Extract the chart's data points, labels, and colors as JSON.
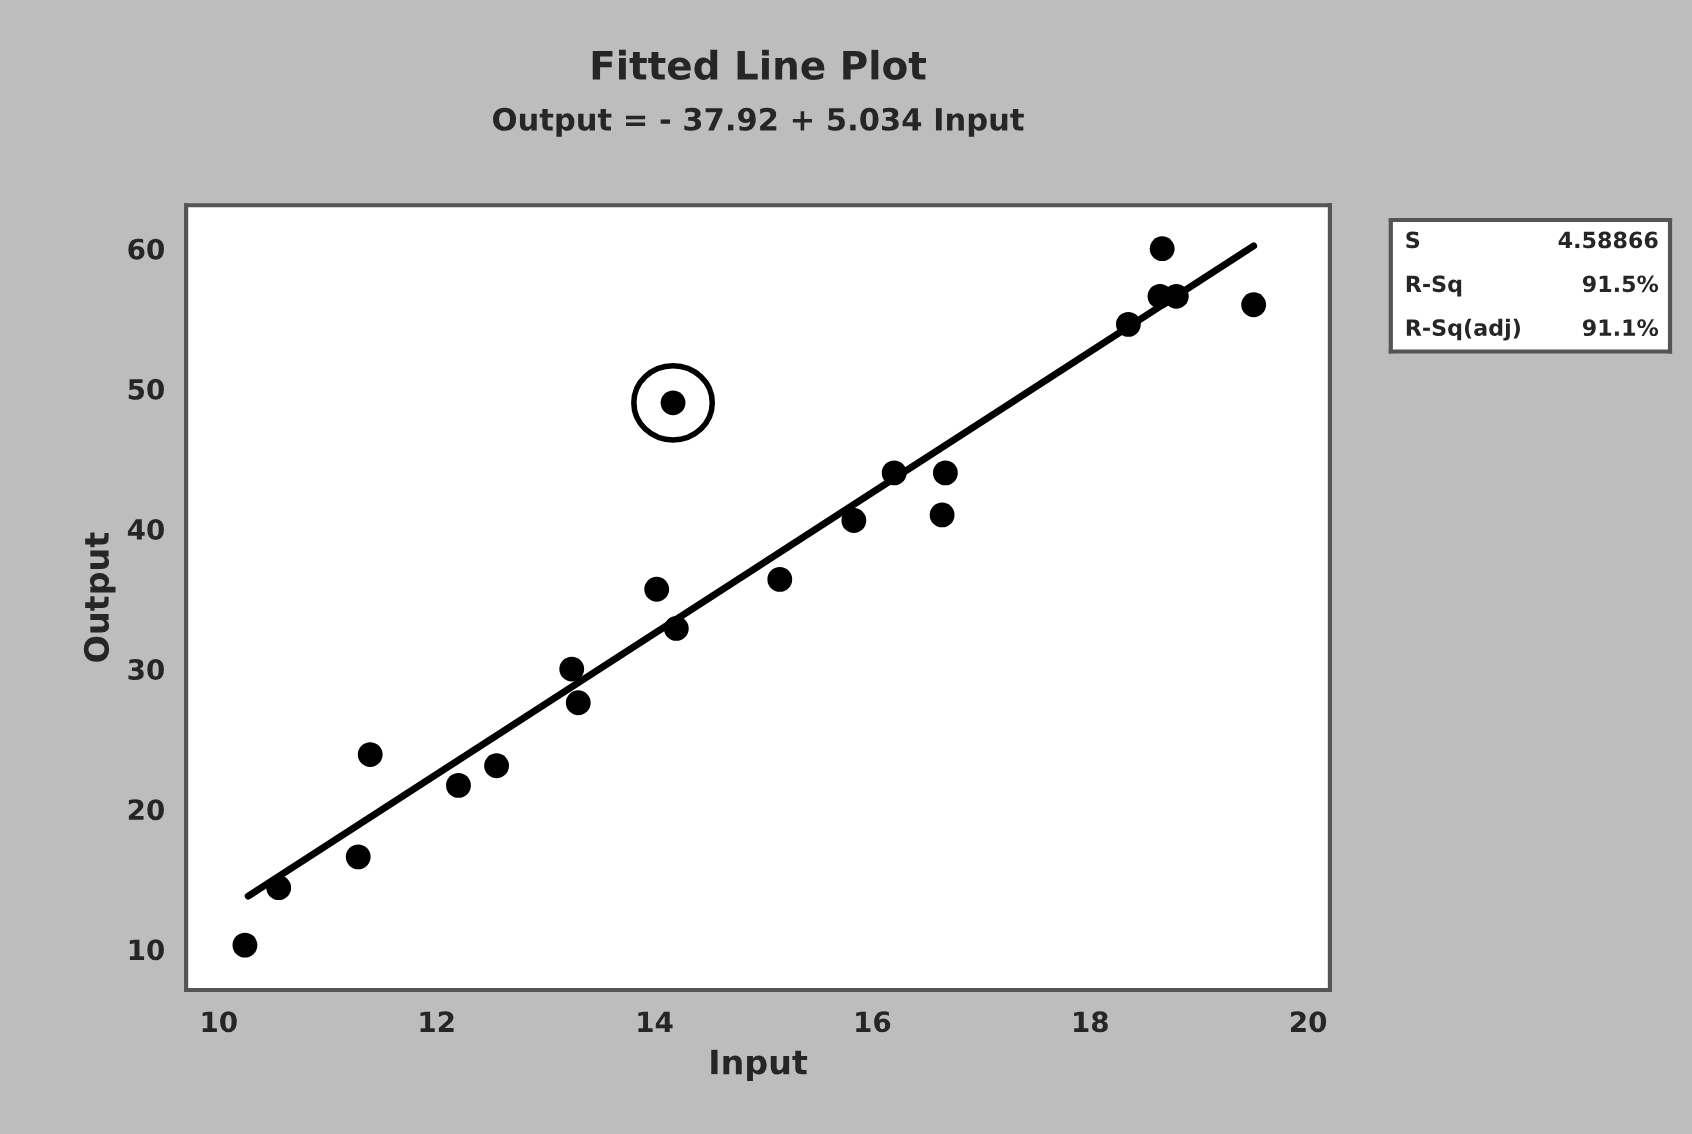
{
  "chart_data": {
    "type": "scatter",
    "title": "Fitted Line Plot",
    "subtitle": "Output = - 37.92 + 5.034 Input",
    "xlabel": "Input",
    "ylabel": "Output",
    "xlim": [
      9.7,
      20.2
    ],
    "ylim": [
      7.1,
      63.1
    ],
    "xticks": [
      10,
      12,
      14,
      16,
      18,
      20
    ],
    "yticks": [
      10,
      20,
      30,
      40,
      50,
      60
    ],
    "grid": false,
    "series": [
      {
        "marker": "circle",
        "color": "#000000",
        "x": [
          10.24,
          10.55,
          11.28,
          11.39,
          12.2,
          12.55,
          13.24,
          13.3,
          14.02,
          14.17,
          14.2,
          15.15,
          15.83,
          16.2,
          16.67,
          16.64,
          18.35,
          18.66,
          18.64,
          18.79,
          19.5
        ],
        "values": [
          10.3,
          14.4,
          16.6,
          23.9,
          21.7,
          23.1,
          30.0,
          27.6,
          35.7,
          49.0,
          32.9,
          36.4,
          40.6,
          44.0,
          44.0,
          41.0,
          54.6,
          60.0,
          56.6,
          56.6,
          56.0
        ]
      },
      {
        "type": "line",
        "marker": "none",
        "color": "#000000",
        "x": [
          10.27,
          19.5
        ],
        "values": [
          13.8,
          60.2
        ]
      }
    ],
    "annotations": [
      "S",
      "4.58866",
      "R-Sq",
      "91.5%",
      "R-Sq(adj)",
      "91.1%"
    ]
  }
}
